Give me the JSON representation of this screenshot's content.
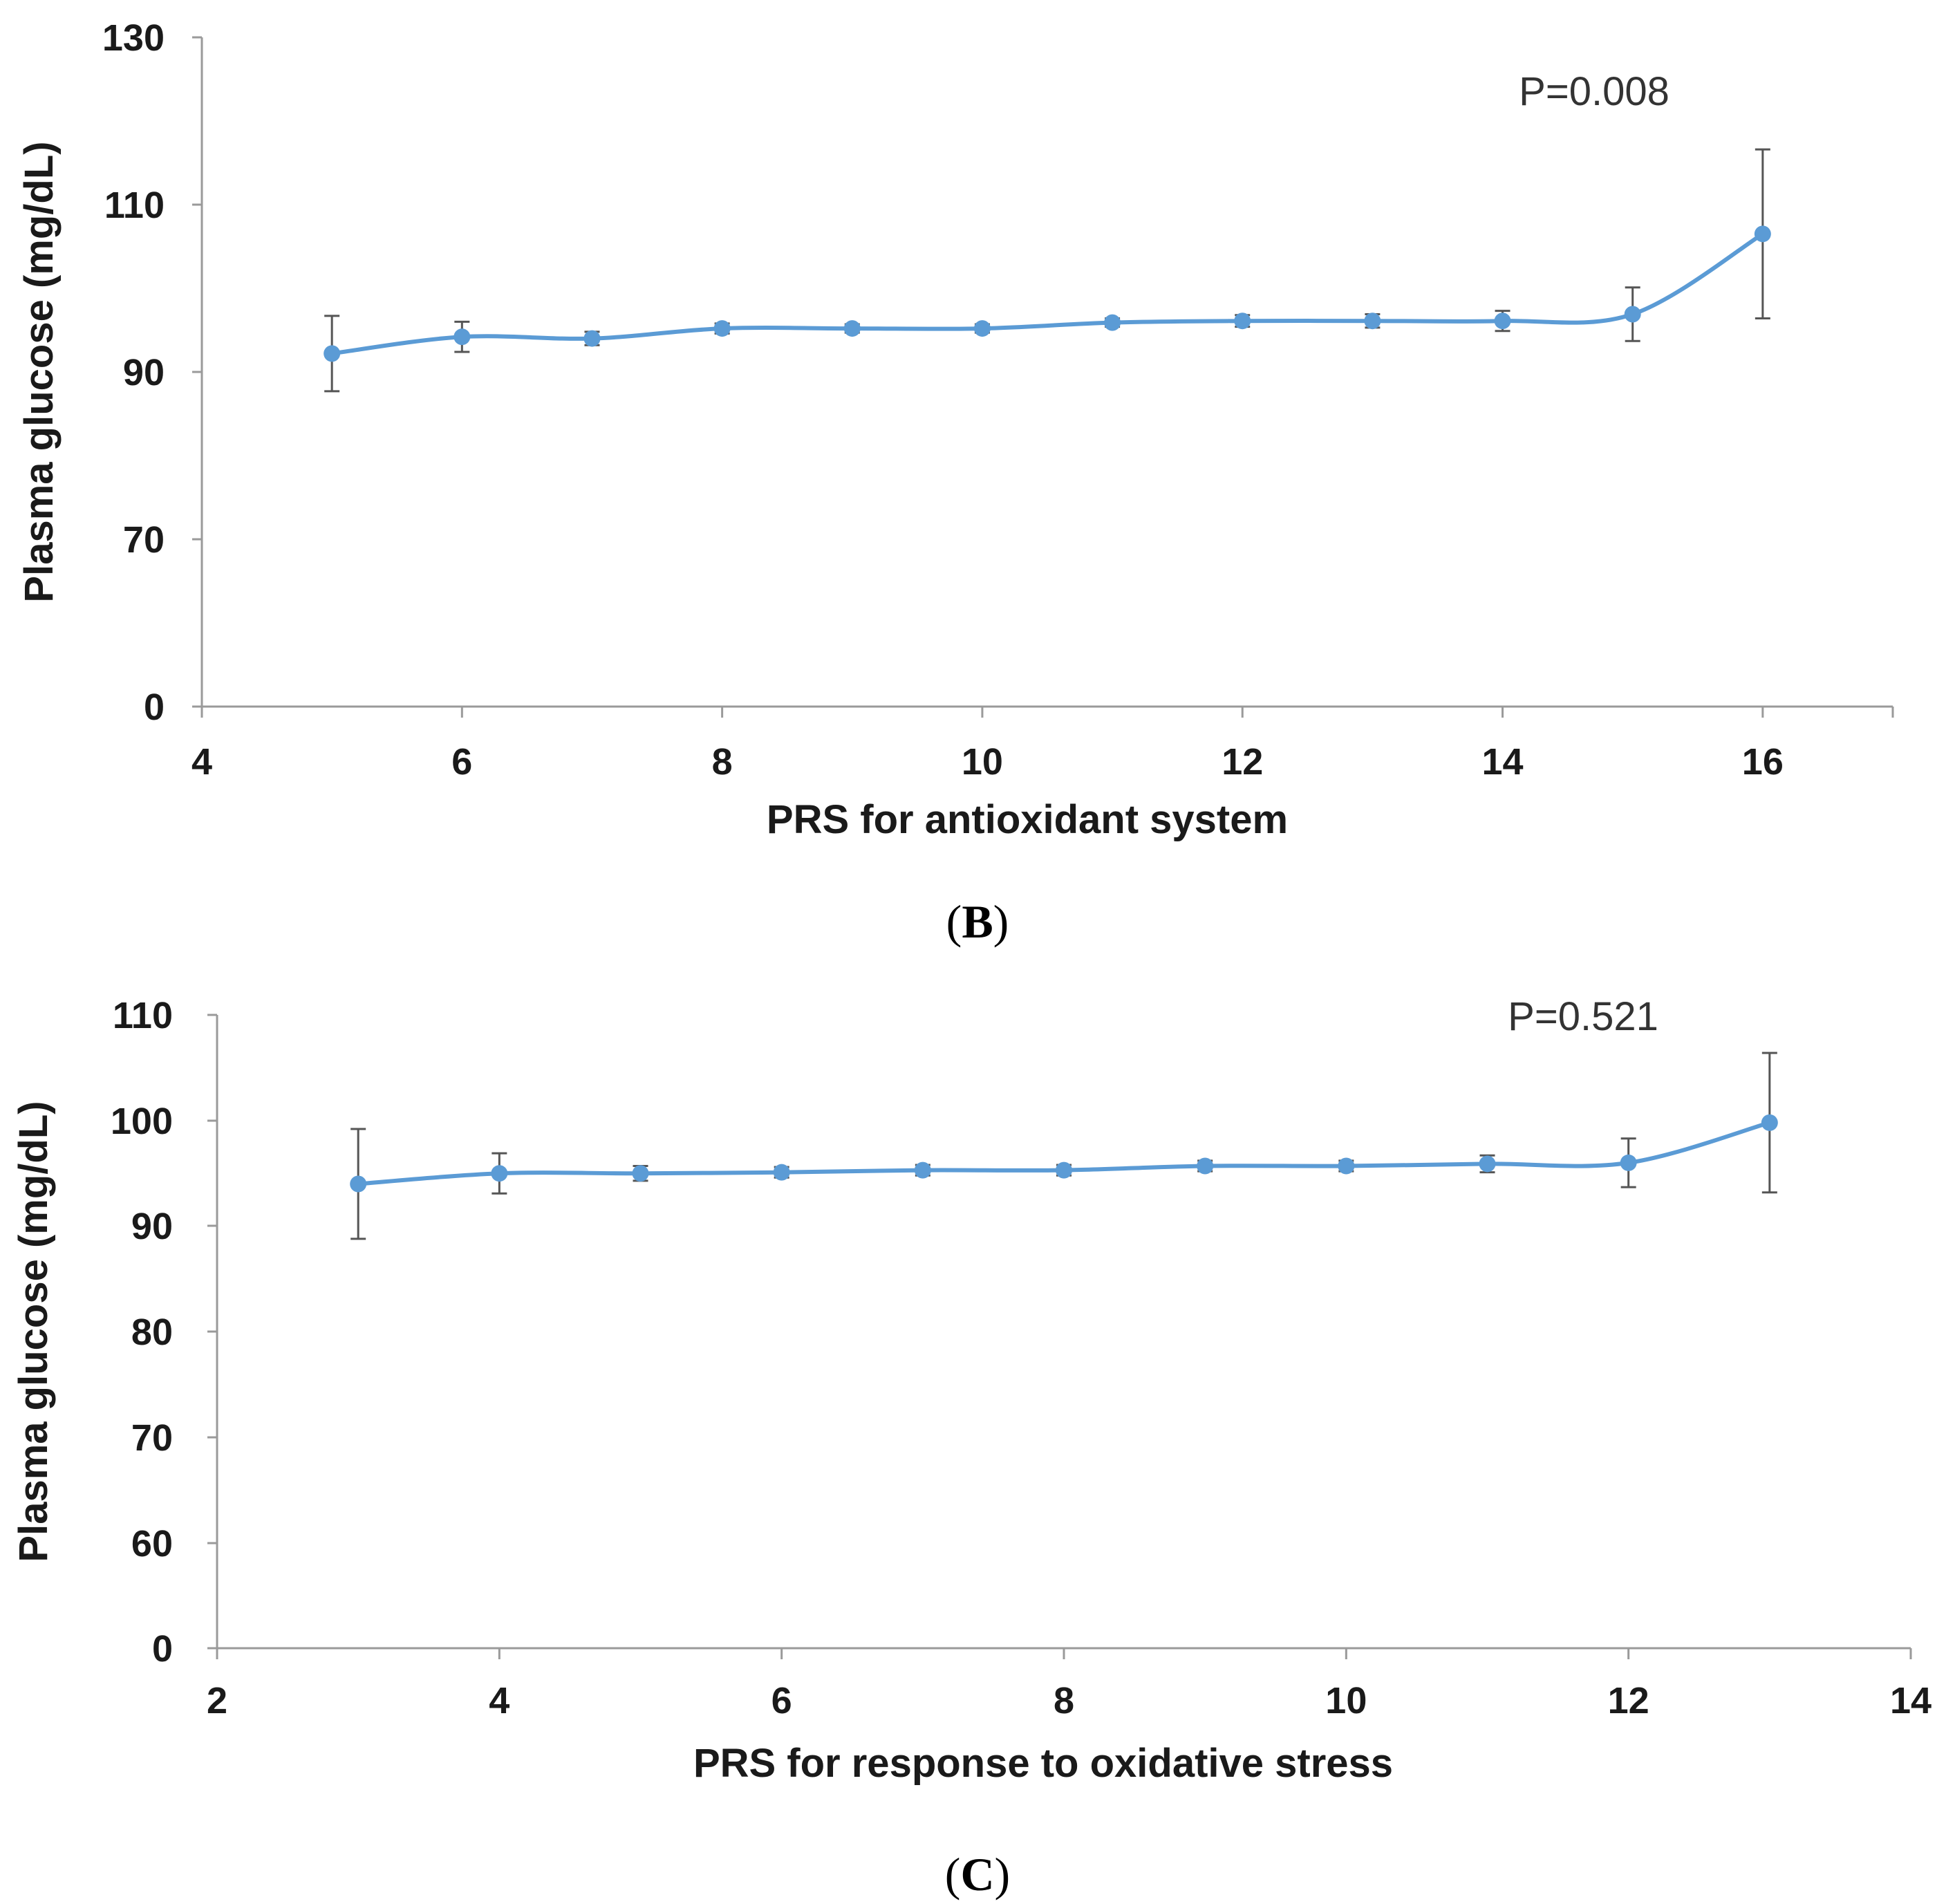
{
  "colors": {
    "series": "#5b9bd5",
    "axis": "#9a9a9a",
    "error_bar": "#555555"
  },
  "chart_data": [
    {
      "panel": "B",
      "type": "line",
      "xlabel": "PRS for antioxidant system",
      "ylabel": "Plasma glucose (mg/dL)",
      "xlim": [
        4,
        17
      ],
      "x_ticks": [
        "4",
        "6",
        "8",
        "10",
        "12",
        "14",
        "16"
      ],
      "y_ticks": [
        "0",
        "70",
        "90",
        "110",
        "130"
      ],
      "annotation": "P=0.008",
      "panel_label": {
        "open": "(",
        "letter": "B",
        "close": ")"
      },
      "series": [
        {
          "name": "Plasma glucose",
          "x": [
            5,
            6,
            7,
            8,
            9,
            10,
            11,
            12,
            13,
            14,
            15,
            16
          ],
          "values": [
            92.2,
            94.2,
            94.0,
            95.2,
            95.2,
            95.2,
            95.9,
            96.1,
            96.1,
            96.1,
            96.9,
            106.5
          ],
          "error": [
            4.5,
            1.8,
            0.8,
            0.6,
            0.5,
            0.5,
            0.5,
            0.7,
            0.8,
            1.2,
            3.2,
            10.1
          ]
        }
      ]
    },
    {
      "panel": "C",
      "type": "line",
      "xlabel": "PRS for response to oxidative stress",
      "ylabel": "Plasma glucose (mg/dL)",
      "xlim": [
        2,
        14
      ],
      "x_ticks": [
        "2",
        "4",
        "6",
        "8",
        "10",
        "12",
        "14"
      ],
      "y_ticks": [
        "0",
        "60",
        "70",
        "80",
        "90",
        "100",
        "110"
      ],
      "annotation": "P=0.521",
      "panel_label": {
        "open": "(",
        "letter": "C",
        "close": ")"
      },
      "series": [
        {
          "name": "Plasma glucose",
          "x": [
            3,
            4,
            5,
            6,
            7,
            8,
            9,
            10,
            11,
            12,
            13
          ],
          "values": [
            94.0,
            95.0,
            95.0,
            95.1,
            95.3,
            95.3,
            95.7,
            95.7,
            95.9,
            96.0,
            99.8
          ],
          "error": [
            5.2,
            1.9,
            0.7,
            0.5,
            0.5,
            0.5,
            0.5,
            0.5,
            0.8,
            2.3,
            6.6
          ]
        }
      ]
    }
  ]
}
